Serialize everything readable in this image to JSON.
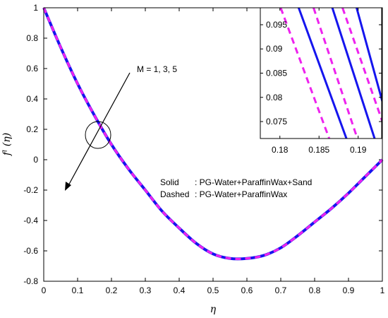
{
  "chart_data": [
    {
      "type": "line",
      "xlabel": "η",
      "ylabel": "fˡ (η)",
      "xlim": [
        0,
        1
      ],
      "ylim": [
        -0.8,
        1
      ],
      "xticks": [
        "0",
        "0.1",
        "0.2",
        "0.3",
        "0.4",
        "0.5",
        "0.6",
        "0.7",
        "0.8",
        "0.9",
        "1"
      ],
      "yticks": [
        "1",
        "0.8",
        "0.6",
        "0.4",
        "0.2",
        "0",
        "-0.2",
        "-0.4",
        "-0.6",
        "-0.8"
      ],
      "x": [
        0,
        0.05,
        0.1,
        0.15,
        0.2,
        0.25,
        0.3,
        0.35,
        0.4,
        0.45,
        0.5,
        0.55,
        0.6,
        0.65,
        0.7,
        0.75,
        0.8,
        0.85,
        0.9,
        0.95,
        1
      ],
      "series": [
        {
          "style": "solid",
          "color": "#1515ee",
          "values": [
            1,
            0.74,
            0.5,
            0.29,
            0.1,
            -0.06,
            -0.2,
            -0.34,
            -0.45,
            -0.55,
            -0.62,
            -0.65,
            -0.65,
            -0.63,
            -0.58,
            -0.5,
            -0.41,
            -0.32,
            -0.22,
            -0.11,
            0
          ]
        },
        {
          "style": "dashed",
          "color": "#ee22ee",
          "values": [
            1,
            0.74,
            0.5,
            0.29,
            0.1,
            -0.06,
            -0.2,
            -0.34,
            -0.45,
            -0.55,
            -0.62,
            -0.65,
            -0.65,
            -0.63,
            -0.58,
            -0.5,
            -0.41,
            -0.32,
            -0.22,
            -0.11,
            0
          ]
        }
      ],
      "annotation": "M = 1, 3, 5",
      "legend": [
        {
          "label": "Solid",
          "text": ": PG-Water+ParaffinWax+Sand"
        },
        {
          "label": "Dashed",
          "text": ": PG-Water+ParaffinWax"
        }
      ],
      "grid": false
    },
    {
      "type": "line",
      "inset": true,
      "xlim": [
        0.1775,
        0.193
      ],
      "ylim": [
        0.0715,
        0.0985
      ],
      "xticks": [
        "0.18",
        "0.185",
        "0.19"
      ],
      "yticks": [
        "0.095",
        "0.09",
        "0.085",
        "0.08",
        "0.075"
      ],
      "series": [
        {
          "style": "dashed",
          "color": "#ee22ee",
          "points": [
            [
              0.1801,
              0.0985
            ],
            [
              0.1863,
              0.0715
            ]
          ]
        },
        {
          "style": "solid",
          "color": "#1515ee",
          "points": [
            [
              0.1824,
              0.0985
            ],
            [
              0.1885,
              0.0715
            ]
          ]
        },
        {
          "style": "dashed",
          "color": "#ee22ee",
          "points": [
            [
              0.1843,
              0.0985
            ],
            [
              0.1899,
              0.0715
            ]
          ]
        },
        {
          "style": "solid",
          "color": "#1515ee",
          "points": [
            [
              0.1867,
              0.0985
            ],
            [
              0.1921,
              0.0715
            ]
          ]
        },
        {
          "style": "dashed",
          "color": "#ee22ee",
          "points": [
            [
              0.188,
              0.0985
            ],
            [
              0.1932,
              0.0745
            ]
          ]
        },
        {
          "style": "solid",
          "color": "#1515ee",
          "points": [
            [
              0.1898,
              0.0985
            ],
            [
              0.1932,
              0.0785
            ]
          ]
        }
      ]
    }
  ]
}
